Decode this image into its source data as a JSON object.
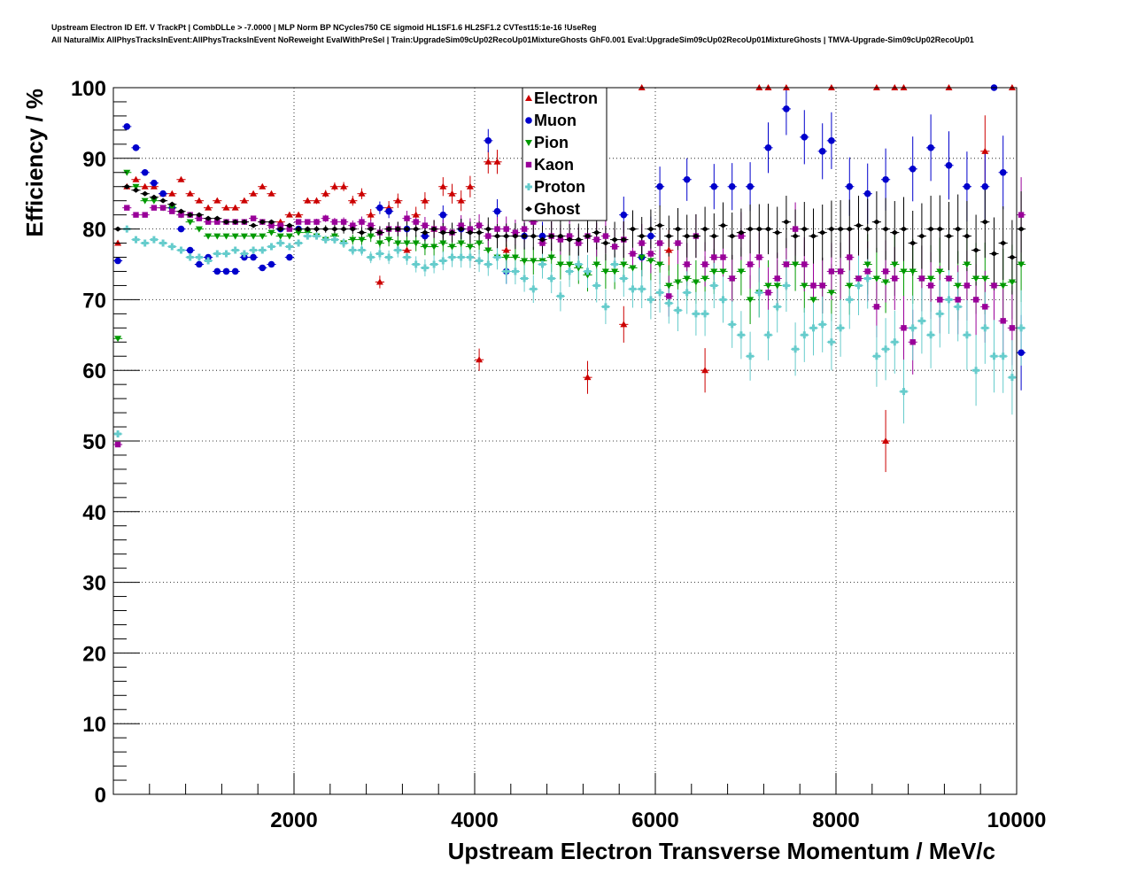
{
  "title_line1": "Upstream Electron ID Eff. V TrackPt | CombDLLe > -7.0000 | MLP Norm BP NCycles750 CE sigmoid HL1SF1.6 HL2SF1.2 CVTest15:1e-16 !UseReg",
  "title_line2": "All NaturalMix AllPhysTracksInEvent:AllPhysTracksInEvent NoReweight EvalWithPreSel | Train:UpgradeSim09cUp02RecoUp01MixtureGhosts GhF0.001 Eval:UpgradeSim09cUp02RecoUp01MixtureGhosts | TMVA-Upgrade-Sim09cUp02RecoUp01",
  "chart_data": {
    "type": "scatter",
    "xlabel": "Upstream Electron Transverse Momentum / MeV/c",
    "ylabel": "Efficiency / %",
    "xlim": [
      0,
      10000
    ],
    "ylim": [
      0,
      100
    ],
    "xticks": [
      2000,
      4000,
      6000,
      8000,
      10000
    ],
    "yticks": [
      0,
      10,
      20,
      30,
      40,
      50,
      60,
      70,
      80,
      90,
      100
    ],
    "grid": true,
    "legend_position": "top-center",
    "series": [
      {
        "name": "Electron",
        "color": "#cc0000",
        "marker": "triangle-up",
        "x": [
          50,
          150,
          250,
          350,
          450,
          550,
          650,
          750,
          850,
          950,
          1050,
          1150,
          1250,
          1350,
          1450,
          1550,
          1650,
          1750,
          1850,
          1950,
          2050,
          2150,
          2250,
          2350,
          2450,
          2550,
          2650,
          2750,
          2850,
          2950,
          3050,
          3150,
          3250,
          3350,
          3450,
          3550,
          3650,
          3750,
          3850,
          3950,
          4050,
          4150,
          4250,
          4350,
          5250,
          5650,
          5850,
          6150,
          6550,
          7150,
          7250,
          7450,
          7950,
          8450,
          8550,
          8650,
          8750,
          9250,
          9650,
          9950
        ],
        "y": [
          78,
          86,
          87,
          86,
          86,
          85,
          85,
          87,
          85,
          84,
          83,
          84,
          83,
          83,
          84,
          85,
          86,
          85,
          81,
          82,
          82,
          84,
          84,
          85,
          86,
          86,
          84,
          85,
          82,
          72.5,
          83,
          84,
          77,
          82,
          84,
          80,
          86,
          85,
          84,
          86,
          61.5,
          89.5,
          89.5,
          77,
          59,
          66.5,
          100,
          77,
          60,
          100,
          100,
          100,
          100,
          100,
          50,
          100,
          100,
          100,
          91,
          100
        ]
      },
      {
        "name": "Muon",
        "color": "#0000cc",
        "marker": "circle",
        "x": [
          50,
          150,
          250,
          350,
          450,
          550,
          650,
          750,
          850,
          950,
          1050,
          1150,
          1250,
          1350,
          1450,
          1550,
          1650,
          1750,
          1850,
          1950,
          2050,
          2950,
          3050,
          3250,
          3450,
          3650,
          3850,
          4150,
          4250,
          4350,
          4550,
          4750,
          5650,
          5850,
          5950,
          6050,
          6350,
          6650,
          6850,
          7050,
          7250,
          7450,
          7650,
          7850,
          7950,
          8150,
          8350,
          8550,
          8850,
          9050,
          9250,
          9450,
          9650,
          9750,
          9850,
          10050
        ],
        "y": [
          75.5,
          94.5,
          91.5,
          88,
          86.5,
          85,
          83,
          80,
          77,
          75,
          76,
          74,
          74,
          74,
          76,
          76,
          74.5,
          75,
          80,
          76,
          80,
          83,
          82.5,
          80,
          79,
          82,
          80,
          92.5,
          82.5,
          74,
          79,
          79,
          82,
          76,
          79,
          86,
          87,
          86,
          86,
          86,
          91.5,
          97,
          93,
          91,
          92.5,
          86,
          85,
          87,
          88.5,
          91.5,
          89,
          86,
          86,
          100,
          88,
          62.5
        ]
      },
      {
        "name": "Pion",
        "color": "#009900",
        "marker": "triangle-down",
        "x": [
          50,
          150,
          250,
          350,
          450,
          550,
          650,
          750,
          850,
          950,
          1050,
          1150,
          1250,
          1350,
          1450,
          1550,
          1650,
          1750,
          1850,
          1950,
          2050,
          2150,
          2250,
          2350,
          2450,
          2550,
          2650,
          2750,
          2850,
          2950,
          3050,
          3150,
          3250,
          3350,
          3450,
          3550,
          3650,
          3750,
          3850,
          3950,
          4050,
          4150,
          4250,
          4350,
          4450,
          4550,
          4650,
          4750,
          4850,
          4950,
          5050,
          5150,
          5250,
          5350,
          5450,
          5550,
          5650,
          5750,
          5850,
          5950,
          6050,
          6150,
          6250,
          6350,
          6450,
          6550,
          6650,
          6750,
          6850,
          6950,
          7050,
          7150,
          7250,
          7350,
          7450,
          7550,
          7650,
          7750,
          7850,
          7950,
          8050,
          8150,
          8250,
          8350,
          8450,
          8550,
          8650,
          8750,
          8850,
          8950,
          9050,
          9150,
          9250,
          9350,
          9450,
          9550,
          9650,
          9750,
          9850,
          9950,
          10050
        ],
        "y": [
          64.5,
          88,
          86,
          84,
          84,
          83,
          83,
          82,
          81,
          80,
          79,
          79,
          79,
          79,
          79,
          79,
          79,
          79.5,
          79,
          79,
          79.5,
          79.5,
          79,
          78.5,
          79,
          78,
          78.5,
          78.5,
          79,
          78,
          78.5,
          78,
          78,
          78,
          77.5,
          77.5,
          78,
          77.5,
          78,
          77.5,
          78,
          77,
          76,
          76,
          76,
          75.5,
          75.5,
          75.5,
          76,
          75,
          75,
          74.5,
          73.5,
          75,
          74,
          74,
          75,
          74.5,
          76,
          75.5,
          75,
          72,
          72.5,
          73,
          72.5,
          73,
          74,
          74,
          73,
          74,
          70,
          71,
          72,
          72,
          75,
          75,
          72,
          70,
          72,
          71,
          74,
          72,
          73,
          75,
          73,
          72.5,
          75,
          74,
          74,
          73,
          73,
          74,
          73,
          72,
          75,
          73,
          73,
          72,
          72,
          72.5,
          75
        ]
      },
      {
        "name": "Kaon",
        "color": "#990099",
        "marker": "square",
        "x": [
          50,
          150,
          250,
          350,
          450,
          550,
          650,
          750,
          850,
          950,
          1050,
          1150,
          1250,
          1350,
          1450,
          1550,
          1650,
          1750,
          1850,
          1950,
          2050,
          2150,
          2250,
          2350,
          2450,
          2550,
          2650,
          2750,
          2850,
          2950,
          3050,
          3150,
          3250,
          3350,
          3450,
          3550,
          3650,
          3750,
          3850,
          3950,
          4050,
          4150,
          4250,
          4350,
          4450,
          4550,
          4650,
          4750,
          4850,
          4950,
          5050,
          5150,
          5250,
          5350,
          5450,
          5550,
          5650,
          5750,
          5850,
          5950,
          6050,
          6150,
          6250,
          6350,
          6450,
          6550,
          6650,
          6750,
          6850,
          6950,
          7050,
          7150,
          7250,
          7350,
          7450,
          7550,
          7650,
          7750,
          7850,
          7950,
          8050,
          8150,
          8250,
          8350,
          8450,
          8550,
          8650,
          8750,
          8850,
          8950,
          9050,
          9150,
          9250,
          9350,
          9450,
          9550,
          9650,
          9750,
          9850,
          9950,
          10050
        ],
        "y": [
          49.5,
          83,
          82,
          82,
          83,
          83,
          82.5,
          82,
          82,
          81.5,
          81,
          81,
          81,
          81,
          81,
          81.5,
          81,
          80.5,
          80.5,
          80,
          81,
          81,
          81,
          81.5,
          81,
          81,
          80.5,
          81,
          80.5,
          79.5,
          80,
          80,
          81.5,
          81,
          80.5,
          80,
          80,
          79.5,
          80.5,
          80,
          80.5,
          79,
          80,
          80,
          79.5,
          80,
          81,
          78,
          79,
          78.5,
          79,
          78,
          79,
          78.5,
          79,
          77.5,
          78.5,
          76.5,
          78,
          76.5,
          78,
          70.5,
          78,
          75,
          79,
          75,
          76,
          76,
          73,
          79,
          75,
          76,
          71,
          73,
          75,
          80,
          75,
          72,
          72,
          74,
          74,
          76,
          73,
          74,
          69,
          74,
          73,
          66,
          64,
          73,
          72,
          70,
          73,
          70,
          72,
          70,
          69,
          72,
          67,
          66,
          82
        ]
      },
      {
        "name": "Proton",
        "color": "#66cccc",
        "marker": "cross",
        "x": [
          50,
          150,
          250,
          350,
          450,
          550,
          650,
          750,
          850,
          950,
          1050,
          1150,
          1250,
          1350,
          1450,
          1550,
          1650,
          1750,
          1850,
          1950,
          2050,
          2150,
          2250,
          2350,
          2450,
          2550,
          2650,
          2750,
          2850,
          2950,
          3050,
          3150,
          3250,
          3350,
          3450,
          3550,
          3650,
          3750,
          3850,
          3950,
          4050,
          4150,
          4250,
          4350,
          4450,
          4550,
          4650,
          4750,
          4850,
          4950,
          5050,
          5150,
          5250,
          5350,
          5450,
          5550,
          5650,
          5750,
          5850,
          5950,
          6050,
          6150,
          6250,
          6350,
          6450,
          6550,
          6650,
          6750,
          6850,
          6950,
          7050,
          7150,
          7250,
          7350,
          7450,
          7550,
          7650,
          7750,
          7850,
          7950,
          8050,
          8150,
          8250,
          8350,
          8450,
          8550,
          8650,
          8750,
          8850,
          8950,
          9050,
          9150,
          9250,
          9350,
          9450,
          9550,
          9650,
          9750,
          9850,
          9950,
          10050
        ],
        "y": [
          51,
          80,
          78.5,
          78,
          78.5,
          78,
          77.5,
          77,
          76,
          76,
          75.5,
          76.5,
          76.5,
          77,
          76.5,
          77,
          77,
          77.5,
          78,
          77.5,
          78,
          79,
          79,
          78.5,
          78.5,
          78,
          77,
          77,
          76,
          76.5,
          76,
          77,
          76,
          75,
          74.5,
          75,
          75.5,
          76,
          76,
          76,
          75.5,
          75,
          76,
          74,
          74,
          73,
          71.5,
          75,
          73,
          70.5,
          74,
          75,
          74,
          72,
          69,
          75,
          73,
          71.5,
          71.5,
          70,
          71,
          69.5,
          68.5,
          71,
          68,
          68,
          72,
          70,
          66.5,
          65,
          62,
          71,
          65,
          69,
          72,
          63,
          65,
          66,
          66.5,
          64,
          66,
          70,
          72,
          73,
          62,
          63,
          64,
          57,
          66,
          67,
          65,
          68,
          70,
          69,
          65,
          60,
          66,
          62,
          62,
          59,
          66
        ]
      },
      {
        "name": "Ghost",
        "color": "#000000",
        "marker": "diamond",
        "x": [
          50,
          150,
          250,
          350,
          450,
          550,
          650,
          750,
          850,
          950,
          1050,
          1150,
          1250,
          1350,
          1450,
          1550,
          1650,
          1750,
          1850,
          1950,
          2050,
          2150,
          2250,
          2350,
          2450,
          2550,
          2650,
          2750,
          2850,
          2950,
          3050,
          3150,
          3250,
          3350,
          3450,
          3550,
          3650,
          3750,
          3850,
          3950,
          4050,
          4150,
          4250,
          4350,
          4450,
          4550,
          4650,
          4750,
          4850,
          4950,
          5050,
          5150,
          5250,
          5350,
          5450,
          5550,
          5650,
          5750,
          5850,
          5950,
          6050,
          6150,
          6250,
          6350,
          6450,
          6550,
          6650,
          6750,
          6850,
          6950,
          7050,
          7150,
          7250,
          7350,
          7450,
          7550,
          7650,
          7750,
          7850,
          7950,
          8050,
          8150,
          8250,
          8350,
          8450,
          8550,
          8650,
          8750,
          8850,
          8950,
          9050,
          9150,
          9250,
          9350,
          9450,
          9550,
          9650,
          9750,
          9850,
          9950,
          10050
        ],
        "y": [
          80,
          86,
          85.5,
          85,
          84.5,
          84,
          83.5,
          82.5,
          82,
          82,
          81.5,
          81.5,
          81,
          81,
          81,
          80.5,
          81,
          81,
          80,
          80.5,
          80,
          80,
          80,
          80,
          80,
          80,
          80,
          79.5,
          80,
          79.5,
          80,
          80,
          80,
          80,
          79.5,
          80,
          79.5,
          79.5,
          80,
          79.5,
          79.5,
          80,
          79,
          79,
          79,
          79,
          79,
          78.5,
          79,
          79,
          78.5,
          78.5,
          79,
          79.5,
          78,
          78.5,
          78.5,
          80,
          79,
          80,
          80.5,
          79,
          80,
          79,
          79,
          80,
          79,
          80.5,
          79,
          79.5,
          80,
          80,
          80,
          79.5,
          81,
          79,
          80,
          79,
          79.5,
          80,
          80,
          80,
          80.5,
          80,
          81,
          80,
          79.5,
          80,
          78,
          79,
          80,
          80,
          79,
          80,
          79,
          77,
          81,
          76.5,
          78,
          76,
          80
        ]
      }
    ]
  }
}
